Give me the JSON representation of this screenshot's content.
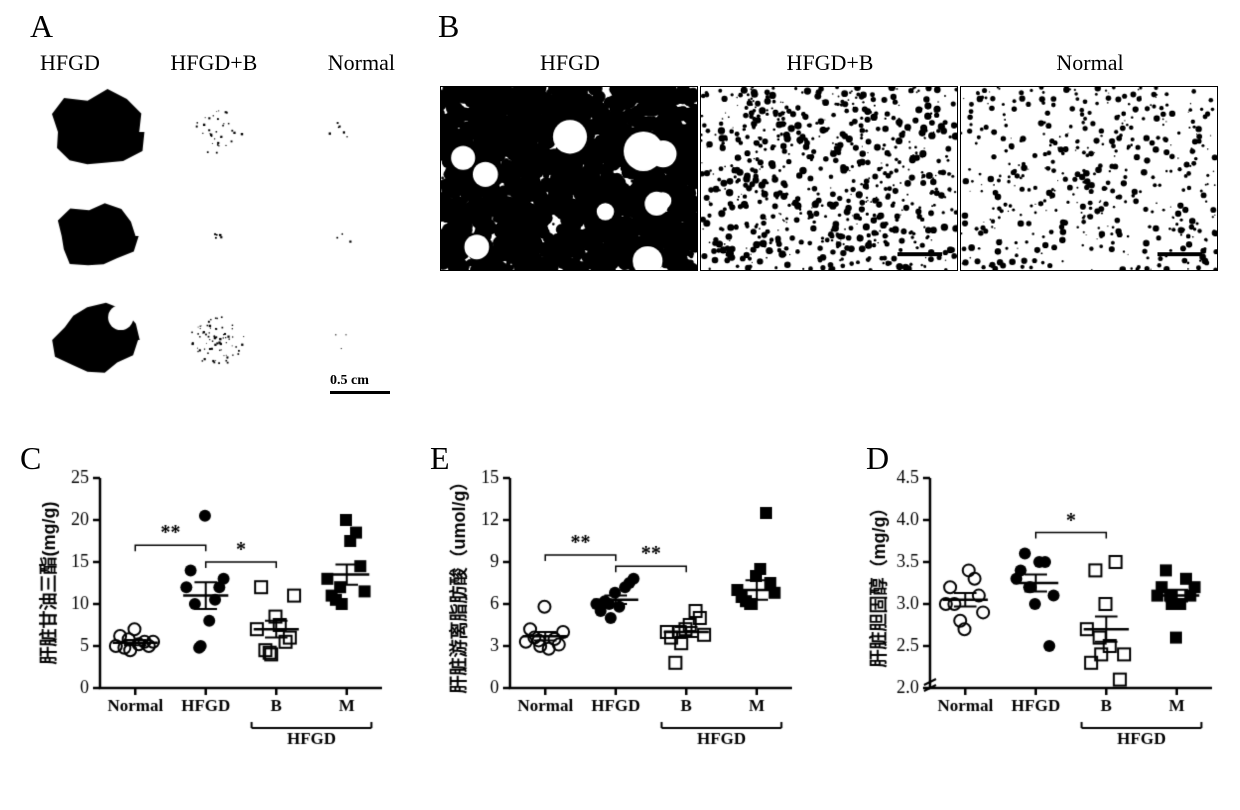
{
  "labels": {
    "A": "A",
    "B": "B",
    "C": "C",
    "D": "D",
    "E": "E"
  },
  "panelA": {
    "groups": [
      "HFGD",
      "HFGD+B",
      "Normal"
    ],
    "scale_label": "0.5 cm"
  },
  "panelB": {
    "groups": [
      "HFGD",
      "HFGD+B",
      "Normal"
    ],
    "densities": [
      0.72,
      0.22,
      0.14
    ],
    "dot_radius_factor": [
      1.0,
      0.45,
      0.4
    ]
  },
  "colors": {
    "black": "#000000",
    "white": "#ffffff",
    "axis": "#000000"
  },
  "scatter_style": {
    "axis_width": 2.5,
    "tick_len": 7,
    "tick_fontsize": 18,
    "ylabel_fontsize": 18,
    "xlabel_fontsize": 17,
    "marker_radius": 6,
    "mean_line_width": 2.5,
    "err_line_width": 2,
    "sig_line_width": 1.5
  },
  "panelC": {
    "ylabel": "肝脏甘油三酯(mg/g)",
    "ylim": [
      0,
      25
    ],
    "ytick_step": 5,
    "groups": [
      "Normal",
      "HFGD",
      "B",
      "M"
    ],
    "bracket_label": "HFGD",
    "bracket_groups": [
      2,
      3
    ],
    "series": [
      {
        "marker": "open_circle",
        "color": "#000000",
        "values": [
          5.0,
          4.5,
          5.5,
          6.2,
          7.0,
          5.0,
          4.8,
          5.2,
          5.5,
          5.8
        ],
        "mean": 5.4,
        "err": 0.3
      },
      {
        "marker": "filled_circle",
        "color": "#000000",
        "values": [
          12.0,
          5.0,
          10.5,
          14.0,
          20.5,
          12.0,
          10.0,
          8.0,
          13.0,
          4.8
        ],
        "mean": 11.0,
        "err": 1.6
      },
      {
        "marker": "open_square",
        "color": "#000000",
        "values": [
          7.0,
          4.0,
          5.5,
          12.0,
          8.5,
          6.0,
          4.5,
          7.5,
          11.0,
          4.2
        ],
        "mean": 7.0,
        "err": 1.0
      },
      {
        "marker": "filled_square",
        "color": "#000000",
        "values": [
          13.0,
          10.0,
          18.5,
          11.0,
          20.0,
          14.5,
          10.5,
          17.5,
          11.5,
          12.0
        ],
        "mean": 13.5,
        "err": 1.2
      }
    ],
    "sig": [
      {
        "from": 0,
        "to": 1,
        "y": 17,
        "label": "**"
      },
      {
        "from": 1,
        "to": 2,
        "y": 15,
        "label": "*"
      }
    ]
  },
  "panelE": {
    "ylabel": "肝脏游离脂肪酸（umol/g）",
    "ylim": [
      0,
      15
    ],
    "ytick_step": 3,
    "groups": [
      "Normal",
      "HFGD",
      "B",
      "M"
    ],
    "bracket_label": "HFGD",
    "bracket_groups": [
      2,
      3
    ],
    "series": [
      {
        "marker": "open_circle",
        "color": "#000000",
        "values": [
          3.3,
          3.0,
          3.5,
          4.2,
          5.8,
          3.1,
          3.6,
          2.8,
          4.0,
          3.4
        ],
        "mean": 3.7,
        "err": 0.3
      },
      {
        "marker": "filled_circle",
        "color": "#000000",
        "values": [
          6.0,
          5.0,
          7.2,
          5.5,
          6.8,
          7.5,
          6.2,
          5.8,
          7.8,
          6.0
        ],
        "mean": 6.3,
        "err": 0.3
      },
      {
        "marker": "open_square",
        "color": "#000000",
        "values": [
          4.0,
          3.2,
          5.5,
          3.6,
          4.2,
          5.0,
          1.8,
          4.5,
          3.8,
          4.0
        ],
        "mean": 4.0,
        "err": 0.35
      },
      {
        "marker": "filled_square",
        "color": "#000000",
        "values": [
          7.0,
          6.0,
          12.5,
          6.5,
          8.0,
          7.5,
          6.2,
          8.5,
          6.8,
          6.0
        ],
        "mean": 7.0,
        "err": 0.7
      }
    ],
    "sig": [
      {
        "from": 0,
        "to": 1,
        "y": 9.5,
        "label": "**"
      },
      {
        "from": 1,
        "to": 2,
        "y": 8.7,
        "label": "**"
      }
    ]
  },
  "panelD": {
    "ylabel": "肝脏胆固醇（mg/g）",
    "ylim": [
      2.0,
      4.5
    ],
    "ytick_step": 0.5,
    "axis_break": true,
    "groups": [
      "Normal",
      "HFGD",
      "B",
      "M"
    ],
    "bracket_label": "HFGD",
    "bracket_groups": [
      2,
      3
    ],
    "series": [
      {
        "marker": "open_circle",
        "color": "#000000",
        "values": [
          3.0,
          2.8,
          3.3,
          3.2,
          2.7,
          3.1,
          3.0,
          3.4,
          2.9
        ],
        "mean": 3.05,
        "err": 0.08
      },
      {
        "marker": "filled_circle",
        "color": "#000000",
        "values": [
          3.3,
          3.2,
          3.5,
          3.4,
          3.0,
          2.5,
          3.6,
          3.5,
          3.1,
          3.2
        ],
        "mean": 3.25,
        "err": 0.1
      },
      {
        "marker": "open_square",
        "color": "#000000",
        "values": [
          2.7,
          2.4,
          3.5,
          2.3,
          3.0,
          2.1,
          3.4,
          2.5,
          2.4,
          2.6
        ],
        "mean": 2.7,
        "err": 0.15
      },
      {
        "marker": "filled_square",
        "color": "#000000",
        "values": [
          3.1,
          3.0,
          3.3,
          3.2,
          2.6,
          3.1,
          3.4,
          3.0,
          3.2,
          3.1
        ],
        "mean": 3.1,
        "err": 0.07
      }
    ],
    "sig": [
      {
        "from": 1,
        "to": 2,
        "y": 3.85,
        "label": "*"
      }
    ]
  }
}
